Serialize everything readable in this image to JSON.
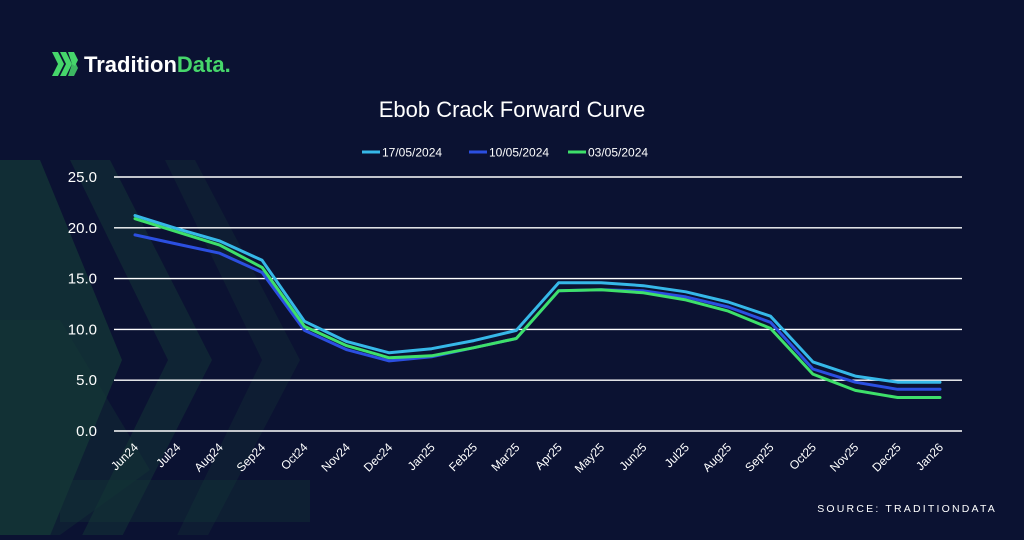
{
  "brand": {
    "name_part1": "Tradition",
    "name_part2": "Data.",
    "part1_color": "#ffffff",
    "part2_color": "#46d66b",
    "icon": "tradition-chevron-logo-icon"
  },
  "footer": {
    "source": "SOURCE: TRADITIONDATA"
  },
  "colors": {
    "background": "#0b1232",
    "grid": "#ffffff",
    "decor_green": "#1d5a3a"
  },
  "chart_data": {
    "type": "line",
    "title": "Ebob Crack Forward Curve",
    "xlabel": "",
    "ylabel": "",
    "ylim": [
      0,
      25
    ],
    "yticks": [
      "0.0",
      "5.0",
      "10.0",
      "15.0",
      "20.0",
      "25.0"
    ],
    "grid": "horizontal",
    "legend_position": "top-center",
    "categories": [
      "Jun24",
      "Jul24",
      "Aug24",
      "Sep24",
      "Oct24",
      "Nov24",
      "Dec24",
      "Jan25",
      "Feb25",
      "Mar25",
      "Apr25",
      "May25",
      "Jun25",
      "Jul25",
      "Aug25",
      "Sep25",
      "Oct25",
      "Nov25",
      "Dec25",
      "Jan26"
    ],
    "series": [
      {
        "name": "17/05/2024",
        "color": "#36b8e8",
        "values": [
          21.2,
          19.9,
          18.7,
          16.8,
          10.8,
          8.8,
          7.7,
          8.1,
          8.9,
          9.9,
          14.6,
          14.6,
          14.3,
          13.7,
          12.7,
          11.3,
          6.8,
          5.4,
          4.8,
          4.8
        ]
      },
      {
        "name": "10/05/2024",
        "color": "#2b4fe0",
        "values": [
          19.3,
          18.4,
          17.5,
          15.6,
          9.9,
          8.0,
          6.9,
          7.3,
          8.2,
          9.1,
          13.8,
          13.9,
          13.8,
          13.2,
          12.2,
          10.7,
          6.1,
          4.8,
          4.1,
          4.1
        ]
      },
      {
        "name": "03/05/2024",
        "color": "#3ee06a",
        "values": [
          20.9,
          19.6,
          18.3,
          16.1,
          10.3,
          8.4,
          7.2,
          7.4,
          8.2,
          9.1,
          13.8,
          13.9,
          13.6,
          12.9,
          11.8,
          10.1,
          5.6,
          4.0,
          3.3,
          3.3
        ]
      }
    ]
  }
}
